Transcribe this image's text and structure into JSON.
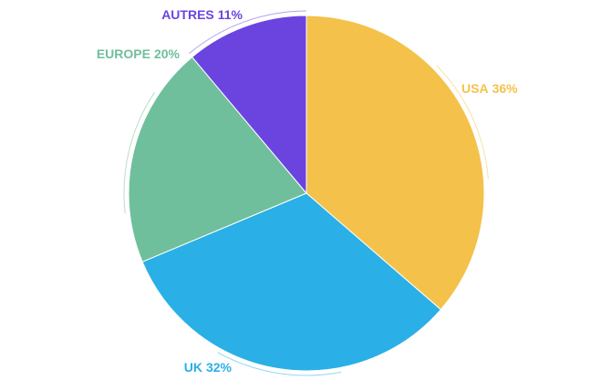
{
  "chart_data": {
    "type": "pie",
    "categories": [
      "USA",
      "UK",
      "EUROPE",
      "AUTRES"
    ],
    "values": [
      36,
      32,
      20,
      11
    ],
    "value_labels": [
      "36%",
      "32%",
      "20%",
      "11%"
    ],
    "colors": [
      "#f4c24a",
      "#2aafe6",
      "#70bf9c",
      "#6b44e0"
    ]
  }
}
